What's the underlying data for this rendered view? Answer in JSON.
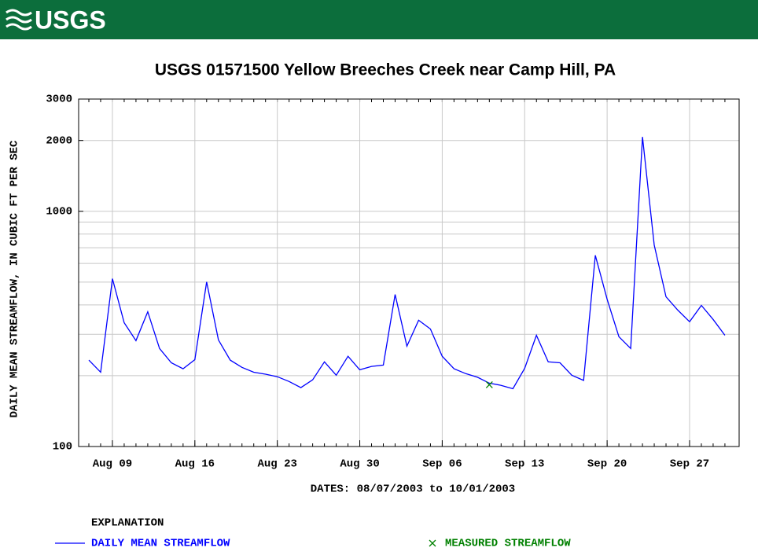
{
  "header": {
    "logo": "USGS"
  },
  "chart_data": {
    "type": "line",
    "title": "USGS 01571500 Yellow Breeches Creek near Camp Hill, PA",
    "y_label": "DAILY MEAN STREAMFLOW, IN CUBIC FT PER SEC",
    "x_label": "DATES: 08/07/2003 to 10/01/2003",
    "legend_title": "EXPLANATION",
    "legend": "bottom",
    "log_scale_y": true,
    "grid": true,
    "categories": [
      null,
      null,
      "Aug 09",
      null,
      null,
      null,
      null,
      null,
      null,
      "Aug 16",
      null,
      null,
      null,
      null,
      null,
      null,
      "Aug 23",
      null,
      null,
      null,
      null,
      null,
      null,
      "Aug 30",
      null,
      null,
      null,
      null,
      null,
      null,
      "Sep 06",
      null,
      null,
      null,
      null,
      null,
      null,
      "Sep 13",
      null,
      null,
      null,
      null,
      null,
      null,
      "Sep 20",
      null,
      null,
      null,
      null,
      null,
      null,
      "Sep 27",
      null,
      null,
      null
    ],
    "series": [
      {
        "name": "DAILY MEAN STREAMFLOW",
        "color": "#0000ff",
        "marker": "line",
        "values": [
          233,
          207,
          517,
          336,
          282,
          374,
          261,
          227,
          214,
          234,
          501,
          284,
          233,
          217,
          207,
          203,
          198,
          189,
          178,
          192,
          229,
          201,
          242,
          212,
          219,
          222,
          443,
          267,
          344,
          316,
          242,
          214,
          204,
          197,
          186,
          182,
          176,
          215,
          297,
          229,
          227,
          201,
          191,
          650,
          423,
          293,
          261,
          2070,
          719,
          433,
          380,
          339,
          398,
          347,
          297
        ]
      },
      {
        "name": "MEASURED STREAMFLOW",
        "color": "#008000",
        "marker": "x",
        "values": [
          null,
          null,
          null,
          null,
          null,
          null,
          null,
          null,
          null,
          null,
          null,
          null,
          null,
          null,
          null,
          null,
          null,
          null,
          null,
          null,
          null,
          null,
          null,
          null,
          null,
          null,
          null,
          null,
          null,
          null,
          null,
          null,
          null,
          null,
          183,
          null,
          null,
          null,
          null,
          null,
          null,
          null,
          null,
          null,
          null,
          null,
          null,
          null,
          null,
          null,
          null,
          null,
          null,
          null,
          null
        ]
      }
    ],
    "ylim": [
      100,
      3000
    ],
    "yticks": [
      100,
      1000,
      2000,
      3000
    ],
    "yminor": [
      200,
      300,
      400,
      500,
      600,
      700,
      800,
      900
    ]
  }
}
